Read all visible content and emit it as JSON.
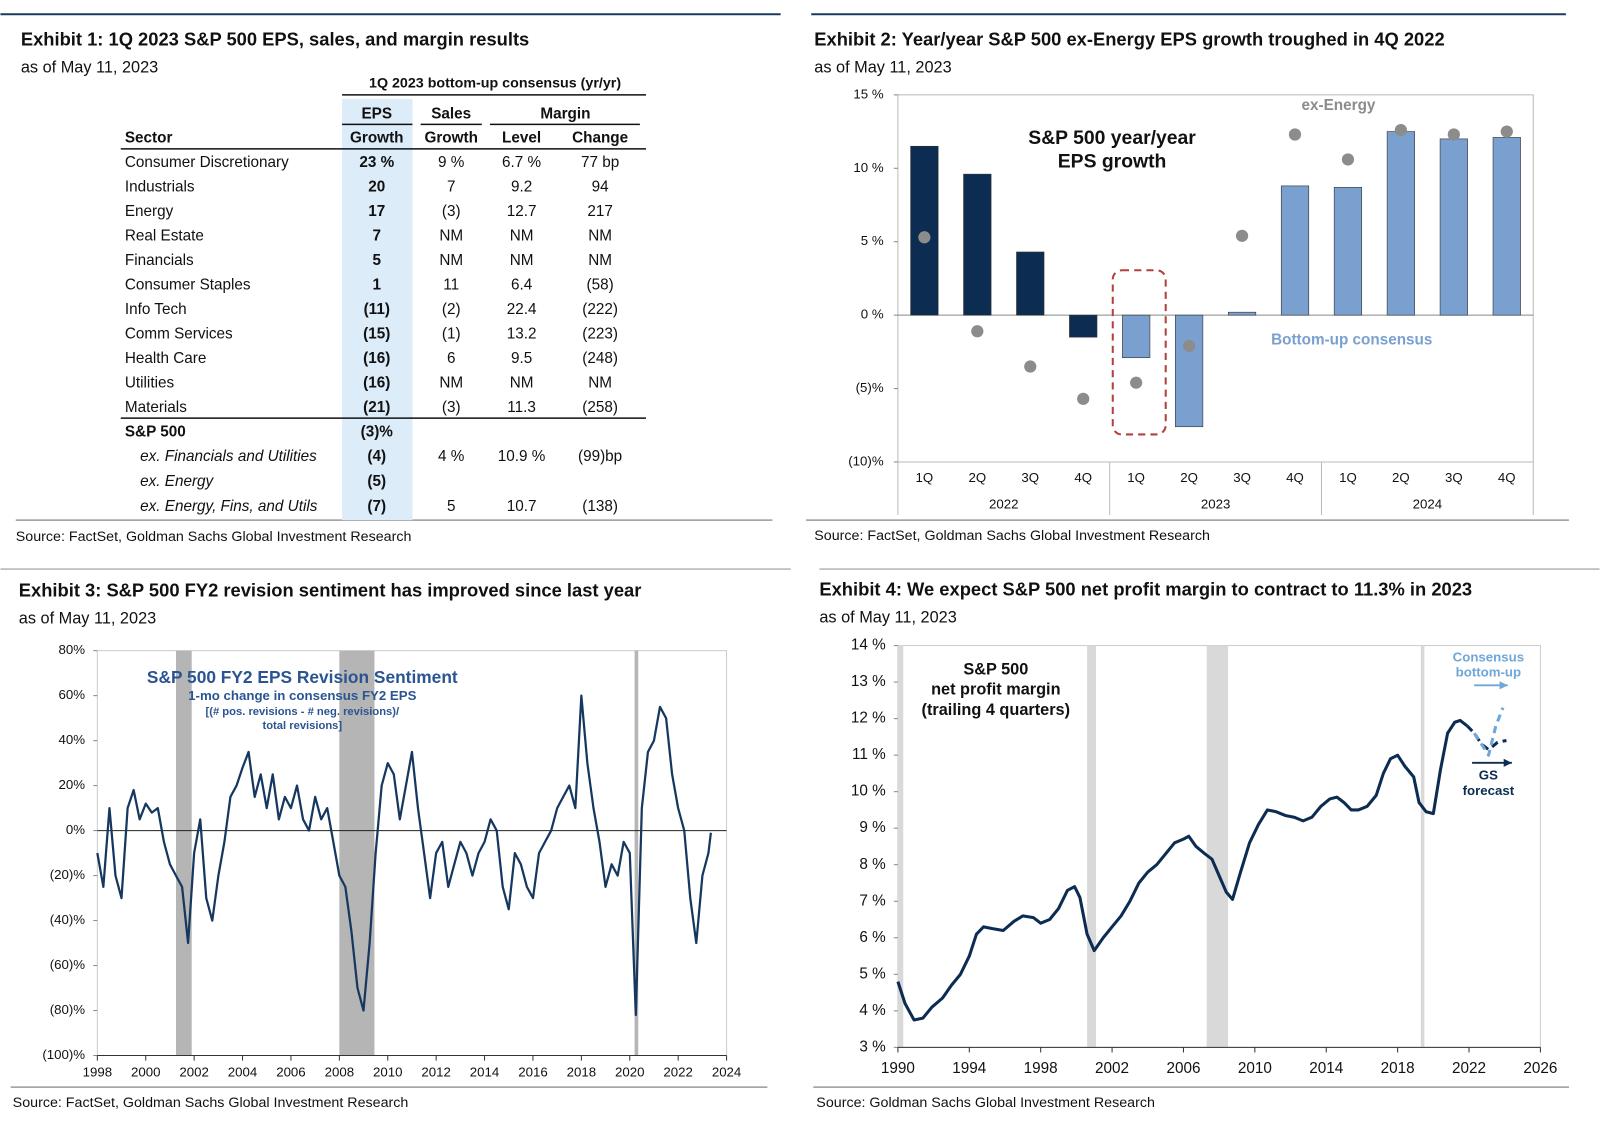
{
  "exhibit1": {
    "title": "Exhibit 1: 1Q 2023 S&P 500 EPS, sales, and margin results",
    "subtitle": "as of May 11, 2023",
    "group_header": "1Q 2023 bottom-up consensus (yr/yr)",
    "header_top": [
      "EPS",
      "Sales",
      "Margin"
    ],
    "header": [
      "Sector",
      "Growth",
      "Growth",
      "Level",
      "Change"
    ],
    "rows": [
      [
        "Consumer Discretionary",
        "23 %",
        "9 %",
        "6.7 %",
        "77 bp"
      ],
      [
        "Industrials",
        "20",
        "7",
        "9.2",
        "94"
      ],
      [
        "Energy",
        "17",
        "(3)",
        "12.7",
        "217"
      ],
      [
        "Real Estate",
        "7",
        "NM",
        "NM",
        "NM"
      ],
      [
        "Financials",
        "5",
        "NM",
        "NM",
        "NM"
      ],
      [
        "Consumer Staples",
        "1",
        "11",
        "6.4",
        "(58)"
      ],
      [
        "Info Tech",
        "(11)",
        "(2)",
        "22.4",
        "(222)"
      ],
      [
        "Comm Services",
        "(15)",
        "(1)",
        "13.2",
        "(223)"
      ],
      [
        "Health Care",
        "(16)",
        "6",
        "9.5",
        "(248)"
      ],
      [
        "Utilities",
        "(16)",
        "NM",
        "NM",
        "NM"
      ],
      [
        "Materials",
        "(21)",
        "(3)",
        "11.3",
        "(258)"
      ]
    ],
    "summary_rows": [
      [
        "S&P 500",
        "(3)%",
        null,
        null,
        null
      ],
      [
        "ex. Financials and Utilities",
        "(4)",
        "4 %",
        "10.9 %",
        "(99)bp"
      ],
      [
        "ex. Energy",
        "(5)",
        null,
        null,
        null
      ],
      [
        "ex. Energy, Fins, and Utils",
        "(7)",
        "5",
        "10.7",
        "(138)"
      ]
    ],
    "source": "Source: FactSet, Goldman Sachs Global Investment Research"
  },
  "chart_data": [
    {
      "type": "bar",
      "title": "Exhibit 2: Year/year S&P 500 ex-Energy EPS growth troughed in 4Q 2022",
      "subtitle": "as of May 11, 2023",
      "annotation": [
        "S&P 500 year/year",
        "EPS growth"
      ],
      "categories": [
        "1Q",
        "2Q",
        "3Q",
        "4Q",
        "1Q",
        "2Q",
        "3Q",
        "4Q",
        "1Q",
        "2Q",
        "3Q",
        "4Q"
      ],
      "years": [
        "2022",
        "2023",
        "2024"
      ],
      "series": [
        {
          "name": "Bottom-up consensus",
          "type": "bar",
          "colors": [
            "#0c2c52",
            "#0c2c52",
            "#0c2c52",
            "#0c2c52",
            "#7aa0cf",
            "#7aa0cf",
            "#7aa0cf",
            "#7aa0cf",
            "#7aa0cf",
            "#7aa0cf",
            "#7aa0cf",
            "#7aa0cf"
          ],
          "values": [
            11.5,
            9.6,
            4.3,
            -1.5,
            -2.9,
            -7.6,
            0.2,
            8.8,
            8.7,
            12.5,
            12.0,
            12.1
          ]
        },
        {
          "name": "ex-Energy",
          "type": "dot",
          "color": "#8c8c8c",
          "values": [
            5.3,
            -1.1,
            -3.5,
            -5.7,
            -4.6,
            -2.1,
            5.4,
            12.3,
            10.6,
            12.6,
            12.3,
            12.5
          ]
        }
      ],
      "ylim": [
        -10,
        15
      ],
      "yticks": [
        {
          "value": 15,
          "label": "15 %"
        },
        {
          "value": 10,
          "label": "10 %"
        },
        {
          "value": 5,
          "label": "5 %"
        },
        {
          "value": 0,
          "label": "0 %"
        },
        {
          "value": -5,
          "label": "(5)%"
        },
        {
          "value": -10,
          "label": "(10)%"
        }
      ],
      "source": "Source: FactSet, Goldman Sachs Global Investment Research"
    },
    {
      "type": "line",
      "title": "Exhibit 3: S&P 500 FY2 revision sentiment has improved since last year",
      "subtitle": "as of May 11, 2023",
      "x": [
        1998.0,
        1998.25,
        1998.5,
        1998.75,
        1999.0,
        1999.25,
        1999.5,
        1999.75,
        2000.0,
        2000.25,
        2000.5,
        2000.75,
        2001.0,
        2001.25,
        2001.5,
        2001.75,
        2002.0,
        2002.25,
        2002.5,
        2002.75,
        2003.0,
        2003.25,
        2003.5,
        2003.75,
        2004.0,
        2004.25,
        2004.5,
        2004.75,
        2005.0,
        2005.25,
        2005.5,
        2005.75,
        2006.0,
        2006.25,
        2006.5,
        2006.75,
        2007.0,
        2007.25,
        2007.5,
        2007.75,
        2008.0,
        2008.25,
        2008.5,
        2008.75,
        2009.0,
        2009.25,
        2009.5,
        2009.75,
        2010.0,
        2010.25,
        2010.5,
        2010.75,
        2011.0,
        2011.25,
        2011.5,
        2011.75,
        2012.0,
        2012.25,
        2012.5,
        2012.75,
        2013.0,
        2013.25,
        2013.5,
        2013.75,
        2014.0,
        2014.25,
        2014.5,
        2014.75,
        2015.0,
        2015.25,
        2015.5,
        2015.75,
        2016.0,
        2016.25,
        2016.5,
        2016.75,
        2017.0,
        2017.25,
        2017.5,
        2017.75,
        2018.0,
        2018.25,
        2018.5,
        2018.75,
        2019.0,
        2019.25,
        2019.5,
        2019.75,
        2020.0,
        2020.25,
        2020.5,
        2020.75,
        2021.0,
        2021.25,
        2021.5,
        2021.75,
        2022.0,
        2022.25,
        2022.5,
        2022.75,
        2023.0,
        2023.25,
        2023.35
      ],
      "series": [
        {
          "label": [
            "S&P 500 FY2 EPS Revision Sentiment",
            "1-mo change in consensus FY2 EPS",
            "[(# pos. revisions - # neg. revisions)/",
            "total revisions]"
          ],
          "color": "#16375f",
          "style": "solid",
          "values": [
            -10,
            -25,
            10,
            -20,
            -30,
            10,
            18,
            5,
            12,
            8,
            10,
            -5,
            -15,
            -20,
            -25,
            -50,
            -10,
            5,
            -30,
            -40,
            -20,
            -5,
            15,
            20,
            28,
            35,
            15,
            25,
            10,
            25,
            5,
            15,
            10,
            20,
            5,
            0,
            15,
            5,
            10,
            -5,
            -20,
            -25,
            -45,
            -70,
            -80,
            -50,
            -10,
            20,
            30,
            25,
            5,
            20,
            35,
            10,
            -10,
            -30,
            -10,
            -5,
            -25,
            -15,
            -5,
            -10,
            -20,
            -10,
            -5,
            5,
            0,
            -25,
            -35,
            -10,
            -15,
            -25,
            -30,
            -10,
            -5,
            0,
            10,
            15,
            20,
            10,
            60,
            30,
            10,
            -5,
            -25,
            -15,
            -20,
            -5,
            -10,
            -82,
            10,
            35,
            40,
            55,
            50,
            25,
            10,
            0,
            -30,
            -50,
            -20,
            -10,
            -1
          ]
        }
      ],
      "shaded_periods": [
        [
          2001.25,
          2001.9
        ],
        [
          2008.0,
          2009.45
        ],
        [
          2020.2,
          2020.35
        ]
      ],
      "xlim": [
        1998,
        2024
      ],
      "xticks": [
        1998,
        2000,
        2002,
        2004,
        2006,
        2008,
        2010,
        2012,
        2014,
        2016,
        2018,
        2020,
        2022,
        2024
      ],
      "ylim": [
        -100,
        80
      ],
      "yticks": [
        {
          "value": 80,
          "label": "80%"
        },
        {
          "value": 60,
          "label": "60%"
        },
        {
          "value": 40,
          "label": "40%"
        },
        {
          "value": 20,
          "label": "20%"
        },
        {
          "value": 0,
          "label": "0%"
        },
        {
          "value": -20,
          "label": "(20)%"
        },
        {
          "value": -40,
          "label": "(40)%"
        },
        {
          "value": -60,
          "label": "(60)%"
        },
        {
          "value": -80,
          "label": "(80)%"
        },
        {
          "value": -100,
          "label": "(100)%"
        }
      ],
      "source": "Source: FactSet, Goldman Sachs Global Investment Research"
    },
    {
      "type": "line",
      "title": "Exhibit 4: We expect S&P 500 net profit margin to contract to 11.3% in 2023",
      "subtitle": "as of May 11, 2023",
      "series": [
        {
          "label": [
            "S&P 500",
            "net profit margin",
            "(trailing 4 quarters)"
          ],
          "color": "#0c2c52",
          "style": "solid",
          "x": [
            1990.0,
            1990.4,
            1990.9,
            1991.4,
            1991.9,
            1992.5,
            1993.0,
            1993.5,
            1994.0,
            1994.4,
            1994.8,
            1995.3,
            1995.9,
            1996.5,
            1997.0,
            1997.6,
            1998.0,
            1998.5,
            1999.0,
            1999.5,
            1999.9,
            2000.2,
            2000.6,
            2001.0,
            2001.5,
            2002.0,
            2002.5,
            2003.0,
            2003.5,
            2004.0,
            2004.5,
            2005.0,
            2005.5,
            2006.0,
            2006.3,
            2006.7,
            2007.2,
            2007.6,
            2008.0,
            2008.4,
            2008.75,
            2009.2,
            2009.7,
            2010.2,
            2010.7,
            2011.2,
            2011.7,
            2012.2,
            2012.7,
            2013.2,
            2013.7,
            2014.2,
            2014.6,
            2015.0,
            2015.4,
            2015.8,
            2016.3,
            2016.8,
            2017.2,
            2017.6,
            2018.0,
            2018.4,
            2018.9,
            2019.2,
            2019.6,
            2020.0,
            2020.4,
            2020.8,
            2021.2,
            2021.5,
            2021.9
          ],
          "values": [
            4.8,
            4.2,
            3.75,
            3.8,
            4.1,
            4.35,
            4.7,
            5.0,
            5.5,
            6.1,
            6.3,
            6.25,
            6.2,
            6.45,
            6.6,
            6.55,
            6.4,
            6.5,
            6.8,
            7.3,
            7.4,
            7.1,
            6.1,
            5.65,
            6.0,
            6.3,
            6.6,
            7.0,
            7.5,
            7.8,
            8.0,
            8.3,
            8.6,
            8.7,
            8.78,
            8.5,
            8.3,
            8.15,
            7.7,
            7.25,
            7.05,
            7.8,
            8.6,
            9.1,
            9.5,
            9.45,
            9.35,
            9.3,
            9.2,
            9.3,
            9.6,
            9.8,
            9.85,
            9.7,
            9.5,
            9.5,
            9.6,
            9.9,
            10.5,
            10.9,
            11.0,
            10.7,
            10.4,
            9.7,
            9.45,
            9.4,
            10.6,
            11.6,
            11.9,
            11.95,
            11.8
          ]
        },
        {
          "label": [
            "GS",
            "forecast"
          ],
          "color": "#0c2c52",
          "style": "dashed",
          "x": [
            2021.9,
            2022.3,
            2022.7,
            2023.1,
            2023.6,
            2024.1
          ],
          "values": [
            11.8,
            11.6,
            11.3,
            11.15,
            11.35,
            11.4
          ]
        },
        {
          "label": [
            "Consensus",
            "bottom-up"
          ],
          "color": "#6fa7d8",
          "style": "dashed",
          "x": [
            2022.3,
            2022.7,
            2023.1,
            2023.5,
            2023.9
          ],
          "values": [
            11.6,
            11.3,
            11.0,
            11.8,
            12.3
          ]
        }
      ],
      "shaded_periods": [
        [
          1990.0,
          1990.3
        ],
        [
          2000.6,
          2001.1
        ],
        [
          2007.3,
          2008.5
        ],
        [
          2019.3,
          2019.5
        ]
      ],
      "xlim": [
        1990,
        2026
      ],
      "xticks": [
        1990,
        1994,
        1998,
        2002,
        2006,
        2010,
        2014,
        2018,
        2022,
        2026
      ],
      "ylim": [
        3,
        14
      ],
      "yticks": [
        {
          "value": 14,
          "label": "14 %"
        },
        {
          "value": 13,
          "label": "13 %"
        },
        {
          "value": 12,
          "label": "12 %"
        },
        {
          "value": 11,
          "label": "11 %"
        },
        {
          "value": 10,
          "label": "10 %"
        },
        {
          "value": 9,
          "label": "9 %"
        },
        {
          "value": 8,
          "label": "8 %"
        },
        {
          "value": 7,
          "label": "7 %"
        },
        {
          "value": 6,
          "label": "6 %"
        },
        {
          "value": 5,
          "label": "5 %"
        },
        {
          "value": 4,
          "label": "4 %"
        },
        {
          "value": 3,
          "label": "3 %"
        }
      ],
      "source": "Source: Goldman Sachs Global Investment Research"
    }
  ]
}
